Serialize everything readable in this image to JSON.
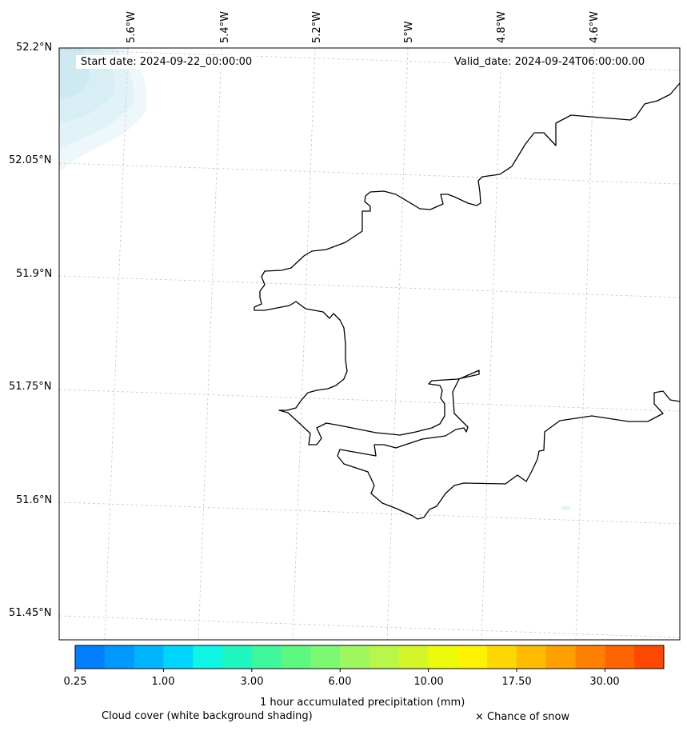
{
  "header": {
    "start_date": "Start date: 2024-09-22_00:00:00",
    "valid_date": "Valid_date: 2024-09-24T06:00:00.00"
  },
  "axes": {
    "lon_labels": [
      "5.6°W",
      "5.4°W",
      "5.2°W",
      "5°W",
      "4.8°W",
      "4.6°W"
    ],
    "lat_labels": [
      "52.2°N",
      "52.05°N",
      "51.9°N",
      "51.75°N",
      "51.6°N",
      "51.45°N"
    ]
  },
  "colorbar": {
    "colors": [
      "#0080ff",
      "#0099ff",
      "#00b5ff",
      "#00d5ff",
      "#0ff5e6",
      "#20f7c0",
      "#40f89c",
      "#5cf880",
      "#7cf872",
      "#9ef75e",
      "#b8f64a",
      "#d4f628",
      "#ecfb0a",
      "#fff200",
      "#ffd700",
      "#ffbb00",
      "#ff9f00",
      "#ff8000",
      "#ff6400",
      "#ff4800"
    ],
    "tick_labels": [
      "0.25",
      "1.00",
      "3.00",
      "6.00",
      "10.00",
      "17.50",
      "30.00"
    ],
    "title": "1 hour accumulated precipitation (mm)"
  },
  "legend": {
    "cloud": "Cloud cover (white background shading)",
    "snow": "× Chance of snow"
  }
}
